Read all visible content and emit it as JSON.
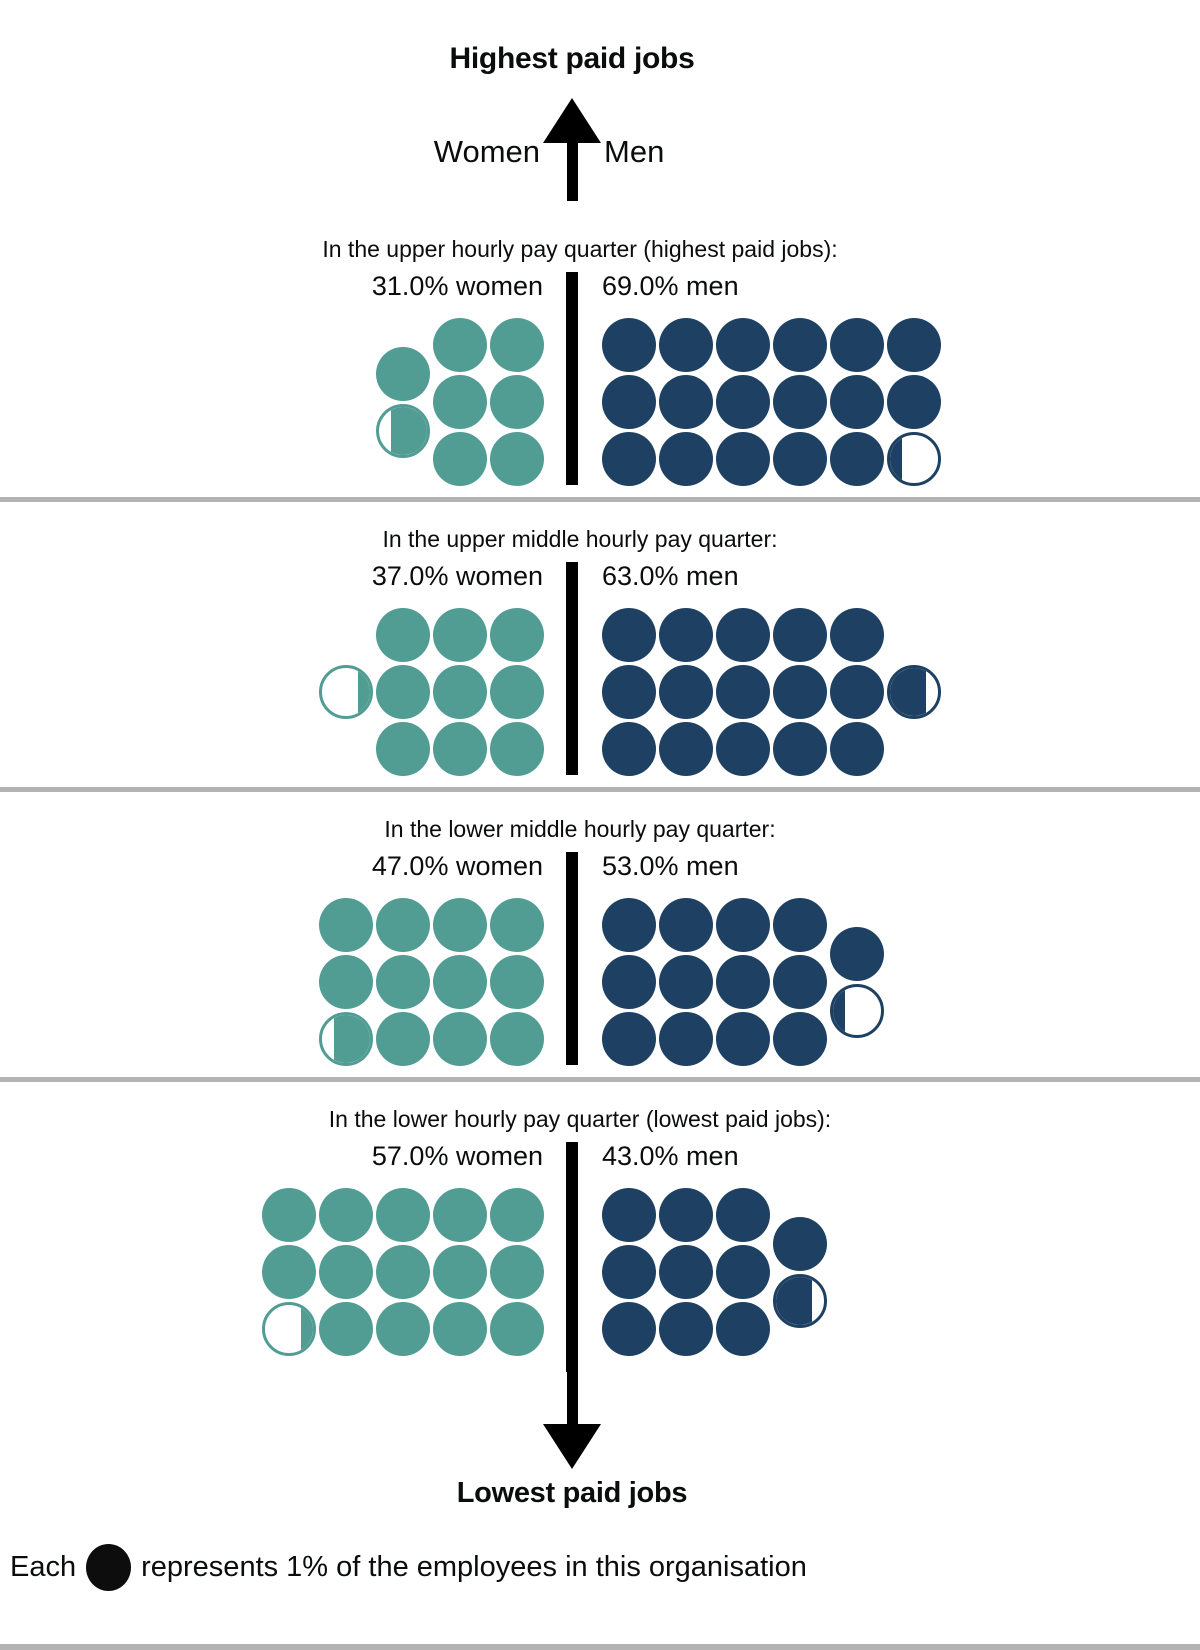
{
  "colors": {
    "women": "#519c93",
    "men": "#1e4063",
    "axis": "#000000",
    "section_divider": "#b3b3b3",
    "text": "#0b0c0c"
  },
  "legend": {
    "prefix": "Each",
    "dot_icon": "filled-black-circle",
    "suffix": "represents 1% of the employees in this organisation"
  },
  "chart_data": {
    "type": "waffle",
    "description": "Gender split of employees in each hourly pay quarter; one circle = 1% of all employees, each quarter = 25 circles",
    "axis": {
      "top": "Highest paid jobs",
      "bottom": "Lowest paid jobs",
      "left": "Women",
      "right": "Men"
    },
    "unit_note": "Each circle represents 1% of the employees in this organisation",
    "quarters": [
      {
        "title": "In the upper hourly pay quarter (highest paid jobs):",
        "women_label": "31.0% women",
        "men_label": "69.0% men",
        "women_pct": 31.0,
        "men_pct": 69.0
      },
      {
        "title": "In the upper middle hourly pay quarter:",
        "women_label": "37.0% women",
        "men_label": "63.0% men",
        "women_pct": 37.0,
        "men_pct": 63.0
      },
      {
        "title": "In the lower middle hourly pay quarter:",
        "women_label": "47.0% women",
        "men_label": "53.0% men",
        "women_pct": 47.0,
        "men_pct": 53.0
      },
      {
        "title": "In the lower hourly pay quarter (lowest paid jobs):",
        "women_label": "57.0% women",
        "men_label": "43.0% men",
        "women_pct": 57.0,
        "men_pct": 43.0
      }
    ]
  }
}
